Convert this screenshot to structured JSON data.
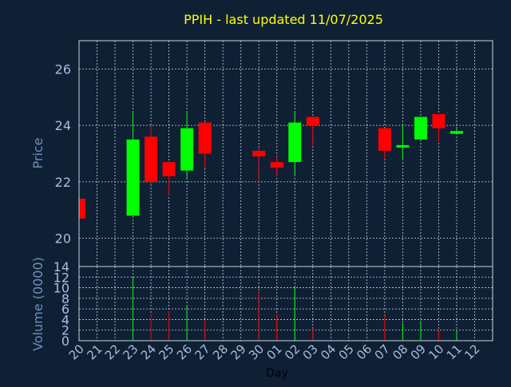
{
  "chart_data": {
    "type": "candlestick",
    "title": "PPIH - last updated 11/07/2025",
    "xlabel": "Day",
    "x_ticks": [
      "20",
      "21",
      "22",
      "23",
      "24",
      "25",
      "26",
      "27",
      "28",
      "29",
      "30",
      "01",
      "02",
      "03",
      "04",
      "05",
      "06",
      "07",
      "08",
      "09",
      "10",
      "11",
      "12"
    ],
    "price_panel": {
      "ylabel": "Price",
      "ylim": [
        19.0,
        27.0
      ],
      "y_ticks": [
        "20",
        "22",
        "24",
        "26"
      ],
      "grid": true
    },
    "volume_panel": {
      "ylabel": "Volume (0000)",
      "ylim": [
        0,
        14
      ],
      "y_ticks": [
        "0",
        "2",
        "4",
        "6",
        "8",
        "10",
        "12",
        "14"
      ],
      "grid": true
    },
    "candles": [
      {
        "day": "20",
        "open": 21.4,
        "high": 21.4,
        "low": 20.7,
        "close": 20.7,
        "volume": 0
      },
      {
        "day": "23",
        "open": 20.8,
        "high": 24.5,
        "low": 20.8,
        "close": 23.5,
        "volume": 12.0
      },
      {
        "day": "24",
        "open": 23.6,
        "high": 24.0,
        "low": 21.9,
        "close": 22.0,
        "volume": 5.0
      },
      {
        "day": "25",
        "open": 22.7,
        "high": 22.7,
        "low": 21.5,
        "close": 22.2,
        "volume": 5.6
      },
      {
        "day": "26",
        "open": 22.4,
        "high": 24.5,
        "low": 22.1,
        "close": 23.9,
        "volume": 6.5
      },
      {
        "day": "27",
        "open": 24.1,
        "high": 24.1,
        "low": 22.5,
        "close": 23.0,
        "volume": 3.8
      },
      {
        "day": "30",
        "open": 23.1,
        "high": 23.2,
        "low": 22.0,
        "close": 22.9,
        "volume": 9.3
      },
      {
        "day": "01",
        "open": 22.7,
        "high": 22.9,
        "low": 22.2,
        "close": 22.5,
        "volume": 5.0
      },
      {
        "day": "02",
        "open": 22.7,
        "high": 24.5,
        "low": 22.2,
        "close": 24.1,
        "volume": 10.2
      },
      {
        "day": "03",
        "open": 24.3,
        "high": 24.3,
        "low": 23.3,
        "close": 24.0,
        "volume": 2.3
      },
      {
        "day": "07",
        "open": 23.9,
        "high": 23.9,
        "low": 22.8,
        "close": 23.1,
        "volume": 4.8
      },
      {
        "day": "08",
        "open": 23.3,
        "high": 24.0,
        "low": 22.8,
        "close": 23.3,
        "volume": 3.4
      },
      {
        "day": "09",
        "open": 23.5,
        "high": 24.3,
        "low": 23.5,
        "close": 24.3,
        "volume": 3.6
      },
      {
        "day": "10",
        "open": 24.4,
        "high": 24.4,
        "low": 23.4,
        "close": 23.9,
        "volume": 1.9
      },
      {
        "day": "11",
        "open": 23.7,
        "high": 23.9,
        "low": 23.7,
        "close": 23.8,
        "volume": 1.9
      }
    ],
    "colors": {
      "background": "#0f2035",
      "up": "#00ff00",
      "down": "#ff0000",
      "title": "#ffff00",
      "axis_label": "#6f8fb8",
      "tick_label": "#a8bedb",
      "frame": "#c8d2dc",
      "grid": "#c8d2dc",
      "xlabel": "#000000"
    }
  }
}
